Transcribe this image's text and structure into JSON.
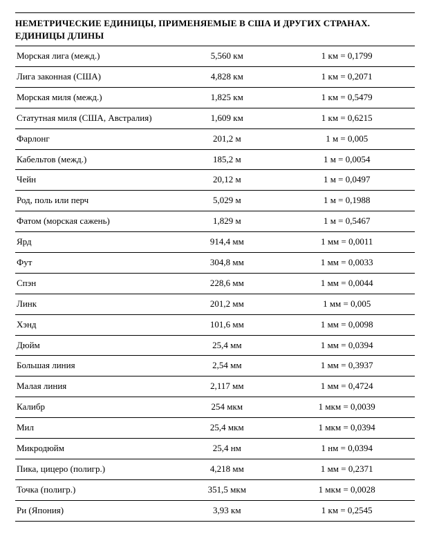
{
  "title": {
    "line1": "НЕМЕТРИЧЕСКИЕ ЕДИНИЦЫ, ПРИМЕНЯЕМЫЕ В США И ДРУГИХ СТРАНАХ.",
    "line2": "ЕДИНИЦЫ ДЛИНЫ"
  },
  "table": {
    "columns": [
      "name",
      "value",
      "inverse"
    ],
    "col_widths_pct": [
      40,
      26,
      34
    ],
    "col_align": [
      "left",
      "center",
      "center"
    ],
    "border_color": "#000000",
    "background_color": "#ffffff",
    "font_size_pt": 10,
    "rows": [
      {
        "name": "Морская лига (межд.)",
        "value": "5,560 км",
        "inverse": "1 км = 0,1799"
      },
      {
        "name": "Лига законная (США)",
        "value": "4,828 км",
        "inverse": "1 км = 0,2071"
      },
      {
        "name": "Морская миля (межд.)",
        "value": "1,825 км",
        "inverse": "1 км = 0,5479"
      },
      {
        "name": "Статутная миля (США, Австралия)",
        "value": "1,609 км",
        "inverse": "1 км = 0,6215"
      },
      {
        "name": "Фарлонг",
        "value": "201,2 м",
        "inverse": "1 м = 0,005"
      },
      {
        "name": "Кабельтов (межд.)",
        "value": "185,2 м",
        "inverse": "1 м = 0,0054"
      },
      {
        "name": "Чейн",
        "value": "20,12 м",
        "inverse": "1 м = 0,0497"
      },
      {
        "name": "Род, поль или перч",
        "value": "5,029 м",
        "inverse": "1 м = 0,1988"
      },
      {
        "name": "Фатом (морская сажень)",
        "value": "1,829 м",
        "inverse": "1 м = 0,5467"
      },
      {
        "name": "Ярд",
        "value": "914,4 мм",
        "inverse": "1 мм = 0,0011"
      },
      {
        "name": "Фут",
        "value": "304,8 мм",
        "inverse": "1 мм = 0,0033"
      },
      {
        "name": "Спэн",
        "value": "228,6 мм",
        "inverse": "1 мм = 0,0044"
      },
      {
        "name": "Линк",
        "value": "201,2 мм",
        "inverse": "1 мм = 0,005"
      },
      {
        "name": "Хэнд",
        "value": "101,6 мм",
        "inverse": "1 мм = 0,0098"
      },
      {
        "name": "Дюйм",
        "value": "25,4 мм",
        "inverse": "1 мм = 0,0394"
      },
      {
        "name": "Большая линия",
        "value": "2,54 мм",
        "inverse": "1 мм = 0,3937"
      },
      {
        "name": "Малая линия",
        "value": "2,117 мм",
        "inverse": "1 мм = 0,4724"
      },
      {
        "name": "Калибр",
        "value": "254 мкм",
        "inverse": "1 мкм = 0,0039"
      },
      {
        "name": "Мил",
        "value": "25,4 мкм",
        "inverse": "1 мкм = 0,0394"
      },
      {
        "name": "Микродюйм",
        "value": "25,4 нм",
        "inverse": "1 нм = 0,0394"
      },
      {
        "name": "Пика, цицеро (полигр.)",
        "value": "4,218 мм",
        "inverse": "1 мм = 0,2371"
      },
      {
        "name": "Точка (полигр.)",
        "value": "351,5 мкм",
        "inverse": "1 мкм = 0,0028"
      },
      {
        "name": "Ри (Япония)",
        "value": "3,93 км",
        "inverse": "1 км = 0,2545"
      }
    ]
  }
}
